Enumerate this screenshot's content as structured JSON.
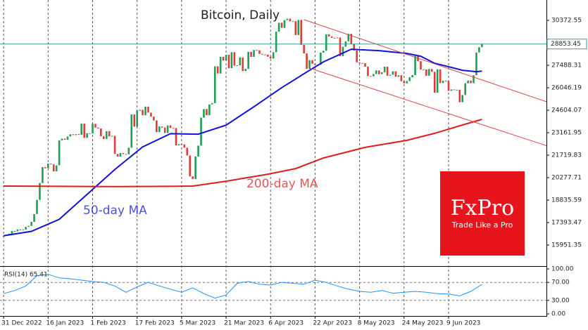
{
  "chart_data": [
    {
      "type": "candlestick",
      "title": "Bitcoin, Daily",
      "xlim": [
        -1.3,
        195.2
      ],
      "xticks": [
        {
          "value": 0,
          "label": "31 Dec 2022"
        },
        {
          "value": 16,
          "label": "16 Jan 2023"
        },
        {
          "value": 32,
          "label": "1 Feb 2023"
        },
        {
          "value": 48,
          "label": "17 Feb 2023"
        },
        {
          "value": 64,
          "label": "5 Mar 2023"
        },
        {
          "value": 80,
          "label": "21 Mar 2023"
        },
        {
          "value": 96,
          "label": "6 Apr 2023"
        },
        {
          "value": 112,
          "label": "22 Apr 2023"
        },
        {
          "value": 128,
          "label": "8 May 2023"
        },
        {
          "value": 144,
          "label": "24 May 2023"
        },
        {
          "value": 160,
          "label": "9 Jun 2023"
        }
      ],
      "ylim": [
        14645,
        31680
      ],
      "yticks": [
        30372.55,
        27488.31,
        26046.19,
        24604.07,
        23161.95,
        21719.83,
        20277.71,
        18835.59,
        17393.47,
        15951.35
      ],
      "last_price": 28853.45,
      "up_color": "#1f9e55",
      "down_color": "#e23b36",
      "closes": [
        16540,
        16620,
        16680,
        16850,
        16830,
        16950,
        16950,
        16940,
        17120,
        17180,
        17440,
        17940,
        18850,
        19930,
        20950,
        20880,
        21180,
        21130,
        20680,
        21070,
        22670,
        22780,
        22710,
        22920,
        23060,
        23010,
        23070,
        23030,
        23740,
        22830,
        23130,
        23120,
        23730,
        23490,
        23430,
        22930,
        22760,
        23260,
        22930,
        22960,
        21800,
        21630,
        21860,
        21790,
        21770,
        22200,
        24330,
        23550,
        24570,
        24630,
        24280,
        24830,
        24450,
        24190,
        23950,
        23200,
        23560,
        23490,
        23140,
        23630,
        23470,
        23460,
        22350,
        22430,
        22410,
        22200,
        21700,
        20360,
        20190,
        21630,
        22330,
        24130,
        24680,
        24290,
        24980,
        25060,
        27420,
        26960,
        28030,
        27790,
        28160,
        27300,
        28330,
        27470,
        27490,
        27990,
        27120,
        27260,
        28350,
        28030,
        28470,
        28450,
        28220,
        28180,
        28170,
        28040,
        27920,
        28330,
        29650,
        30220,
        29890,
        30390,
        30480,
        30310,
        30320,
        29430,
        30400,
        28800,
        28250,
        27260,
        27820,
        27590,
        27520,
        27520,
        28300,
        28420,
        29480,
        29340,
        29250,
        29230,
        29270,
        28070,
        28680,
        29030,
        29510,
        28850,
        28440,
        27680,
        27630,
        27620,
        27400,
        26800,
        26780,
        26930,
        27160,
        26920,
        27040,
        27400,
        26820,
        26880,
        27100,
        26750,
        26850,
        26470,
        26330,
        26480,
        26720,
        26860,
        28080,
        27750,
        27220,
        27220,
        26820,
        27250,
        27070,
        25730,
        27230,
        26350,
        26500,
        26480,
        25850,
        25940,
        25900,
        25920,
        25120,
        25580,
        26330,
        26510,
        26340,
        26850,
        28310,
        28650,
        28850
      ],
      "lines": [
        {
          "name": "50-day MA",
          "color": "#1212d8",
          "x": [
            0,
            10,
            20,
            30,
            40,
            50,
            60,
            70,
            80,
            90,
            100,
            110,
            115,
            125,
            135,
            145,
            150,
            155,
            160,
            165,
            170,
            172
          ],
          "values": [
            16550,
            16830,
            17600,
            19200,
            20800,
            22250,
            23100,
            23070,
            23650,
            24830,
            26050,
            27170,
            27710,
            28520,
            28430,
            28250,
            28070,
            27620,
            27400,
            27170,
            27080,
            27120
          ]
        },
        {
          "name": "200-day MA",
          "color": "#e01c1c",
          "x": [
            0,
            20,
            40,
            60,
            68,
            80,
            95,
            105,
            115,
            130,
            145,
            155,
            165,
            172
          ],
          "values": [
            19737,
            19720,
            19700,
            19720,
            19737,
            20050,
            20500,
            20860,
            21540,
            22220,
            22670,
            23120,
            23660,
            24020
          ]
        },
        {
          "color": "#d84848",
          "x": [
            108,
            195.2
          ],
          "values": [
            30420,
            25150
          ]
        },
        {
          "color": "#d84848",
          "x": [
            110,
            195.2
          ],
          "values": [
            27310,
            22330
          ]
        }
      ]
    },
    {
      "type": "line",
      "title": "RSI(14) 65.41",
      "ylim": [
        0,
        100
      ],
      "yticks": [
        {
          "value": 100,
          "label": "100.00"
        },
        {
          "value": 70,
          "label": "70.00"
        },
        {
          "value": 30,
          "label": "30.00"
        },
        {
          "value": 0,
          "label": "0.00"
        }
      ],
      "color": "#1e90ff",
      "x": [
        0,
        4,
        8,
        12,
        16,
        20,
        24,
        28,
        32,
        36,
        40,
        44,
        48,
        52,
        56,
        60,
        64,
        68,
        72,
        76,
        80,
        84,
        88,
        92,
        96,
        100,
        104,
        108,
        112,
        116,
        120,
        124,
        128,
        132,
        136,
        140,
        144,
        148,
        152,
        156,
        160,
        164,
        168,
        172
      ],
      "values": [
        45,
        52,
        62,
        85,
        88,
        80,
        78,
        75,
        72,
        70,
        62,
        48,
        60,
        70,
        62,
        55,
        48,
        58,
        45,
        35,
        42,
        68,
        72,
        66,
        64,
        70,
        68,
        66,
        75,
        70,
        62,
        55,
        50,
        48,
        52,
        46,
        48,
        50,
        48,
        45,
        44,
        40,
        50,
        65.41
      ]
    }
  ],
  "logo": {
    "brand": "FxPro",
    "tagline": "Trade Like a Pro"
  }
}
